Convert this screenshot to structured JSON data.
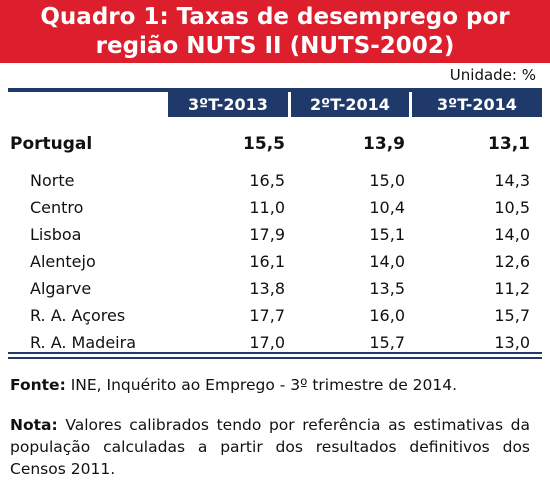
{
  "header": {
    "title_line1": "Quadro 1: Taxas de desemprego por",
    "title_line2": "região NUTS II (NUTS-2002)",
    "unit": "Unidade: %"
  },
  "table": {
    "columns": [
      "3ºT-2013",
      "2ºT-2014",
      "3ºT-2014"
    ],
    "rows": [
      [
        "Portugal",
        "15,5",
        "13,9",
        "13,1"
      ],
      [
        "Norte",
        "16,5",
        "15,0",
        "14,3"
      ],
      [
        "Centro",
        "11,0",
        "10,4",
        "10,5"
      ],
      [
        "Lisboa",
        "17,9",
        "15,1",
        "14,0"
      ],
      [
        "Alentejo",
        "16,1",
        "14,0",
        "12,6"
      ],
      [
        "Algarve",
        "13,8",
        "13,5",
        "11,2"
      ],
      [
        "R. A. Açores",
        "17,7",
        "16,0",
        "15,7"
      ],
      [
        "R. A. Madeira",
        "17,0",
        "15,7",
        "13,0"
      ]
    ]
  },
  "footer": {
    "source_label": "Fonte:",
    "source_text": "INE, Inquérito ao Emprego - 3º trimestre de 2014.",
    "note_label": "Nota:",
    "note_text": "Valores calibrados tendo por referência as estimativas da população calculadas a partir dos resultados definitivos dos Censos 2011."
  }
}
